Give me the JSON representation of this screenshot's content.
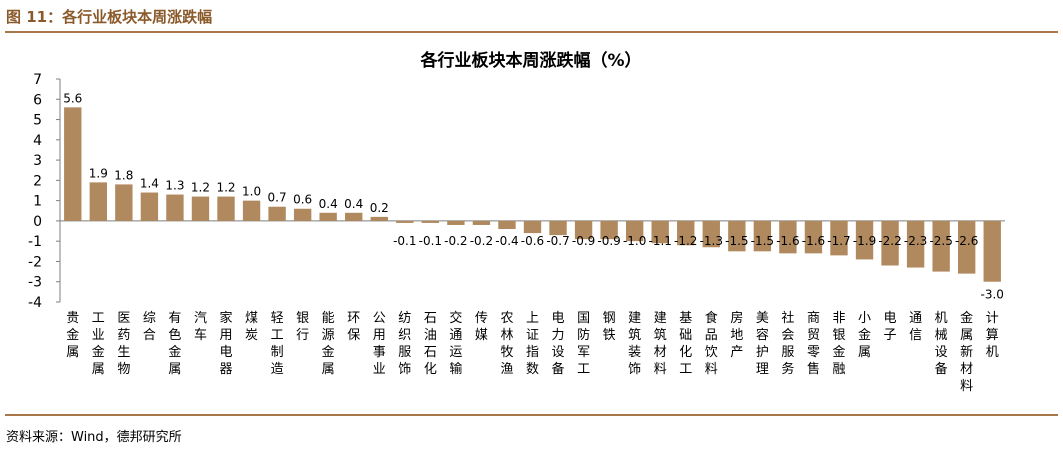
{
  "figure": {
    "title": "图 11：各行业板块本周涨跌幅",
    "source": "资料来源：Wind，德邦研究所"
  },
  "colors": {
    "bar": "#b0895e",
    "accent": "#8b5a2b",
    "rule": "#a9784a"
  },
  "chart_data": {
    "type": "bar",
    "title": "各行业板块本周涨跌幅（%）",
    "xlabel": "",
    "ylabel": "",
    "ylim": [
      -4,
      7
    ],
    "yticks": [
      7,
      6,
      5,
      4,
      3,
      2,
      1,
      0,
      -1,
      -2,
      -3,
      -4
    ],
    "grid": false,
    "categories": [
      "贵金属",
      "工业金属",
      "医药生物",
      "综合",
      "有色金属",
      "汽车",
      "家用电器",
      "煤炭",
      "轻工制造",
      "银行",
      "能源金属",
      "环保",
      "公用事业",
      "纺织服饰",
      "石油石化",
      "交通运输",
      "传媒",
      "农林牧渔",
      "上证指数",
      "电力设备",
      "国防军工",
      "钢铁",
      "建筑装饰",
      "建筑材料",
      "基础化工",
      "食品饮料",
      "房地产",
      "美容护理",
      "社会服务",
      "商贸零售",
      "非银金融",
      "小金属",
      "电子",
      "通信",
      "机械设备",
      "金属新材料",
      "计算机"
    ],
    "values": [
      5.6,
      1.9,
      1.8,
      1.4,
      1.3,
      1.2,
      1.2,
      1.0,
      0.7,
      0.6,
      0.4,
      0.4,
      0.2,
      -0.1,
      -0.1,
      -0.2,
      -0.2,
      -0.4,
      -0.6,
      -0.7,
      -0.9,
      -0.9,
      -1.0,
      -1.1,
      -1.2,
      -1.3,
      -1.5,
      -1.5,
      -1.6,
      -1.6,
      -1.7,
      -1.9,
      -2.2,
      -2.3,
      -2.5,
      -2.6,
      -3.0
    ],
    "labels": [
      "5.6",
      "1.9",
      "1.8",
      "1.4",
      "1.3",
      "1.2",
      "1.2",
      "1.0",
      "0.7",
      "0.6",
      "0.4",
      "0.4",
      "0.2",
      "-0.1",
      "-0.1",
      "-0.2",
      "-0.2",
      "-0.4",
      "-0.6",
      "-0.7",
      "-0.9",
      "-0.9",
      "-1.0",
      "-1.1",
      "-1.2",
      "-1.3",
      "-1.5",
      "-1.5",
      "-1.6",
      "-1.6",
      "-1.7",
      "-1.9",
      "-2.2",
      "-2.3",
      "-2.5",
      "-2.6",
      "-3.0"
    ]
  }
}
